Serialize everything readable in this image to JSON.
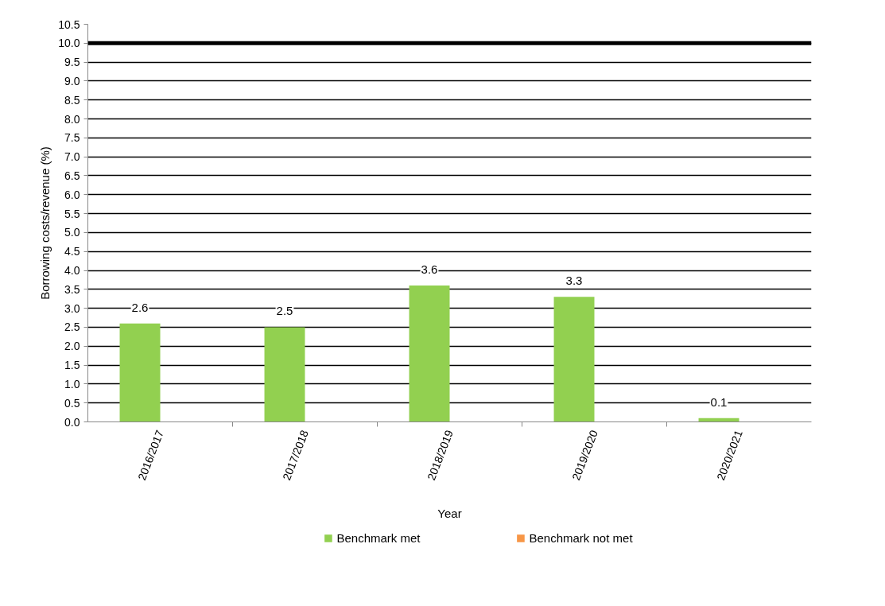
{
  "chart_data": {
    "type": "bar",
    "xlabel": "Year",
    "ylabel": "Borrowing costs/revenue (%)",
    "categories": [
      "2016/2017",
      "2017/2018",
      "2018/2019",
      "2019/2020",
      "2020/2021"
    ],
    "series": [
      {
        "name": "Benchmark met",
        "color": "#92d050",
        "values": [
          2.6,
          2.5,
          3.6,
          3.3,
          0.1
        ]
      },
      {
        "name": "Benchmark not met",
        "color": "#f79646",
        "values": [
          null,
          null,
          null,
          null,
          null
        ]
      }
    ],
    "ylim": [
      0,
      10.5
    ],
    "yticks": [
      {
        "value": 0,
        "label": "0.0"
      },
      {
        "value": 0.5,
        "label": "0.5"
      },
      {
        "value": 1,
        "label": "1.0"
      },
      {
        "value": 1.5,
        "label": "1.5"
      },
      {
        "value": 2,
        "label": "2.0"
      },
      {
        "value": 2.5,
        "label": "2.5"
      },
      {
        "value": 3,
        "label": "3.0"
      },
      {
        "value": 3.5,
        "label": "3.5"
      },
      {
        "value": 4,
        "label": "4.0"
      },
      {
        "value": 4.5,
        "label": "4.5"
      },
      {
        "value": 5,
        "label": "5.0"
      },
      {
        "value": 5.5,
        "label": "5.5"
      },
      {
        "value": 6,
        "label": "6.0"
      },
      {
        "value": 6.5,
        "label": "6.5"
      },
      {
        "value": 7,
        "label": "7.0"
      },
      {
        "value": 7.5,
        "label": "7.5"
      },
      {
        "value": 8,
        "label": "8.0"
      },
      {
        "value": 8.5,
        "label": "8.5"
      },
      {
        "value": 9,
        "label": "9.0"
      },
      {
        "value": 9.5,
        "label": "9.5"
      },
      {
        "value": 10,
        "label": "10.0"
      },
      {
        "value": 10.5,
        "label": "10.5"
      }
    ],
    "ref_lines": [
      {
        "axis": "y",
        "value": 10,
        "color": "#000000"
      }
    ],
    "grid": "y",
    "legend": "bottom",
    "data_labels": true
  }
}
